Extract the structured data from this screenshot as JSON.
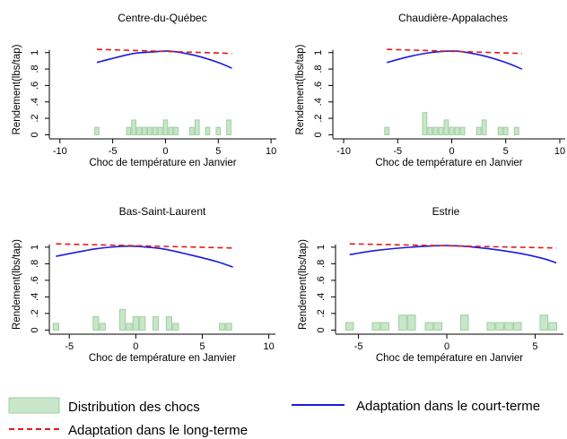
{
  "chart_data": [
    {
      "type": "bar",
      "title": "Centre-du-Québec",
      "xlabel": "Choc de température en Janvier",
      "ylabel": "Rendement(lbs/tap)",
      "xlim": [
        -11,
        10.5
      ],
      "ylim": [
        -0.05,
        1.15
      ],
      "xticks": [
        -10,
        -5,
        0,
        5,
        10
      ],
      "xtick_labels": [
        "-10",
        "-5",
        "0",
        "5",
        "10"
      ],
      "yticks": [
        0,
        0.2,
        0.4,
        0.6,
        0.8,
        1
      ],
      "ytick_labels": [
        "0",
        ".2",
        ".4",
        ".6",
        ".8",
        "1"
      ],
      "bar_width": 0.5,
      "shocks": {
        "name": "Distribution des chocs",
        "x": [
          -6.5,
          -3.5,
          -3.0,
          -2.5,
          -2.0,
          -1.5,
          -1.0,
          -0.5,
          0.0,
          0.5,
          1.0,
          2.5,
          3.0,
          4.0,
          5.0,
          6.0
        ],
        "values": [
          0.09,
          0.09,
          0.18,
          0.09,
          0.09,
          0.09,
          0.09,
          0.09,
          0.18,
          0.09,
          0.09,
          0.09,
          0.18,
          0.09,
          0.09,
          0.18
        ]
      },
      "short_term": {
        "name": "Adaptation dans le court-terme",
        "x": [
          -6.5,
          -5.0,
          -3.0,
          -1.0,
          0.0,
          1.0,
          3.0,
          5.0,
          6.3
        ],
        "values": [
          0.88,
          0.93,
          0.99,
          1.01,
          1.02,
          1.01,
          0.96,
          0.88,
          0.81
        ]
      },
      "long_term": {
        "name": "Adaptation dans le long-terme",
        "x": [
          -6.5,
          6.3
        ],
        "values": [
          1.04,
          0.99
        ]
      }
    },
    {
      "type": "bar",
      "title": "Chaudière-Appalaches",
      "xlabel": "Choc de température en Janvier",
      "ylabel": "Rendement(lbs/tap)",
      "xlim": [
        -11,
        10.5
      ],
      "ylim": [
        -0.05,
        1.15
      ],
      "xticks": [
        -10,
        -5,
        0,
        5,
        10
      ],
      "xtick_labels": [
        "-10",
        "-5",
        "0",
        "5",
        "10"
      ],
      "yticks": [
        0,
        0.2,
        0.4,
        0.6,
        0.8,
        1
      ],
      "ytick_labels": [
        "0",
        ".2",
        ".4",
        ".6",
        ".8",
        "1"
      ],
      "bar_width": 0.5,
      "shocks": {
        "name": "Distribution des chocs",
        "x": [
          -6.0,
          -2.5,
          -2.0,
          -1.5,
          -1.0,
          -0.5,
          0.0,
          0.5,
          1.0,
          2.5,
          3.0,
          4.5,
          5.0,
          6.0
        ],
        "values": [
          0.09,
          0.27,
          0.09,
          0.09,
          0.09,
          0.18,
          0.09,
          0.09,
          0.09,
          0.09,
          0.18,
          0.09,
          0.09,
          0.09
        ]
      },
      "short_term": {
        "name": "Adaptation dans le court-terme",
        "x": [
          -6.0,
          -4.0,
          -2.0,
          0.0,
          1.0,
          3.0,
          5.0,
          6.5
        ],
        "values": [
          0.88,
          0.95,
          1.0,
          1.02,
          1.01,
          0.96,
          0.88,
          0.8
        ]
      },
      "long_term": {
        "name": "Adaptation dans le long-terme",
        "x": [
          -6.0,
          6.5
        ],
        "values": [
          1.04,
          0.99
        ]
      }
    },
    {
      "type": "bar",
      "title": "Bas-Saint-Laurent",
      "xlabel": "Choc de température en Janvier",
      "ylabel": "Rendement(lbs/tap)",
      "xlim": [
        -6.5,
        10.5
      ],
      "ylim": [
        -0.05,
        1.15
      ],
      "xticks": [
        -5,
        0,
        5,
        10
      ],
      "xtick_labels": [
        "-5",
        "0",
        "5",
        "10"
      ],
      "yticks": [
        0,
        0.2,
        0.4,
        0.6,
        0.8,
        1
      ],
      "ytick_labels": [
        "0",
        ".2",
        ".4",
        ".6",
        ".8",
        "1"
      ],
      "bar_width": 0.5,
      "shocks": {
        "name": "Distribution des chocs",
        "x": [
          -6.0,
          -3.0,
          -2.5,
          -1.0,
          -0.5,
          0.0,
          0.5,
          1.5,
          2.5,
          3.0,
          6.5,
          7.0
        ],
        "values": [
          0.08,
          0.16,
          0.08,
          0.25,
          0.08,
          0.16,
          0.16,
          0.16,
          0.16,
          0.08,
          0.08,
          0.08
        ]
      },
      "short_term": {
        "name": "Adaptation dans le court-terme",
        "x": [
          -6.0,
          -3.0,
          -1.0,
          0.0,
          2.0,
          4.0,
          6.0,
          7.3
        ],
        "values": [
          0.89,
          0.98,
          1.01,
          1.01,
          0.98,
          0.91,
          0.83,
          0.76
        ]
      },
      "long_term": {
        "name": "Adaptation dans le long-terme",
        "x": [
          -6.0,
          7.3
        ],
        "values": [
          1.04,
          0.99
        ]
      }
    },
    {
      "type": "bar",
      "title": "Estrie",
      "xlabel": "Choc de température en Janvier",
      "ylabel": "Rendement(lbs/tap)",
      "xlim": [
        -6.3,
        6.6
      ],
      "ylim": [
        -0.05,
        1.15
      ],
      "xticks": [
        -5,
        0,
        5
      ],
      "xtick_labels": [
        "-5",
        "0",
        "5"
      ],
      "yticks": [
        0,
        0.2,
        0.4,
        0.6,
        0.8,
        1
      ],
      "ytick_labels": [
        "0",
        ".2",
        ".4",
        ".6",
        ".8",
        "1"
      ],
      "bar_width": 0.5,
      "shocks": {
        "name": "Distribution des chocs",
        "x": [
          -5.5,
          -4.0,
          -3.5,
          -2.5,
          -2.0,
          -1.0,
          -0.5,
          1.0,
          2.5,
          3.0,
          3.5,
          4.0,
          5.5,
          6.0
        ],
        "values": [
          0.09,
          0.09,
          0.09,
          0.18,
          0.18,
          0.09,
          0.09,
          0.18,
          0.09,
          0.09,
          0.09,
          0.09,
          0.18,
          0.09
        ]
      },
      "short_term": {
        "name": "Adaptation dans le court-terme",
        "x": [
          -5.5,
          -4.0,
          -2.0,
          0.0,
          2.0,
          4.0,
          5.5,
          6.2
        ],
        "values": [
          0.91,
          0.96,
          1.0,
          1.02,
          0.99,
          0.93,
          0.86,
          0.81
        ]
      },
      "long_term": {
        "name": "Adaptation dans le long-terme",
        "x": [
          -5.5,
          6.2
        ],
        "values": [
          1.04,
          0.99
        ]
      }
    }
  ],
  "legend": {
    "shocks": "Distribution des chocs",
    "short_term": "Adaptation dans le court-terme",
    "long_term": "Adaptation dans le long-terme"
  },
  "colors": {
    "bar_fill": "#c8e6c9",
    "bar_stroke": "#9fcf9f",
    "short_term": "#1a1ae0",
    "long_term": "#e01a1a",
    "axis": "#000000"
  }
}
